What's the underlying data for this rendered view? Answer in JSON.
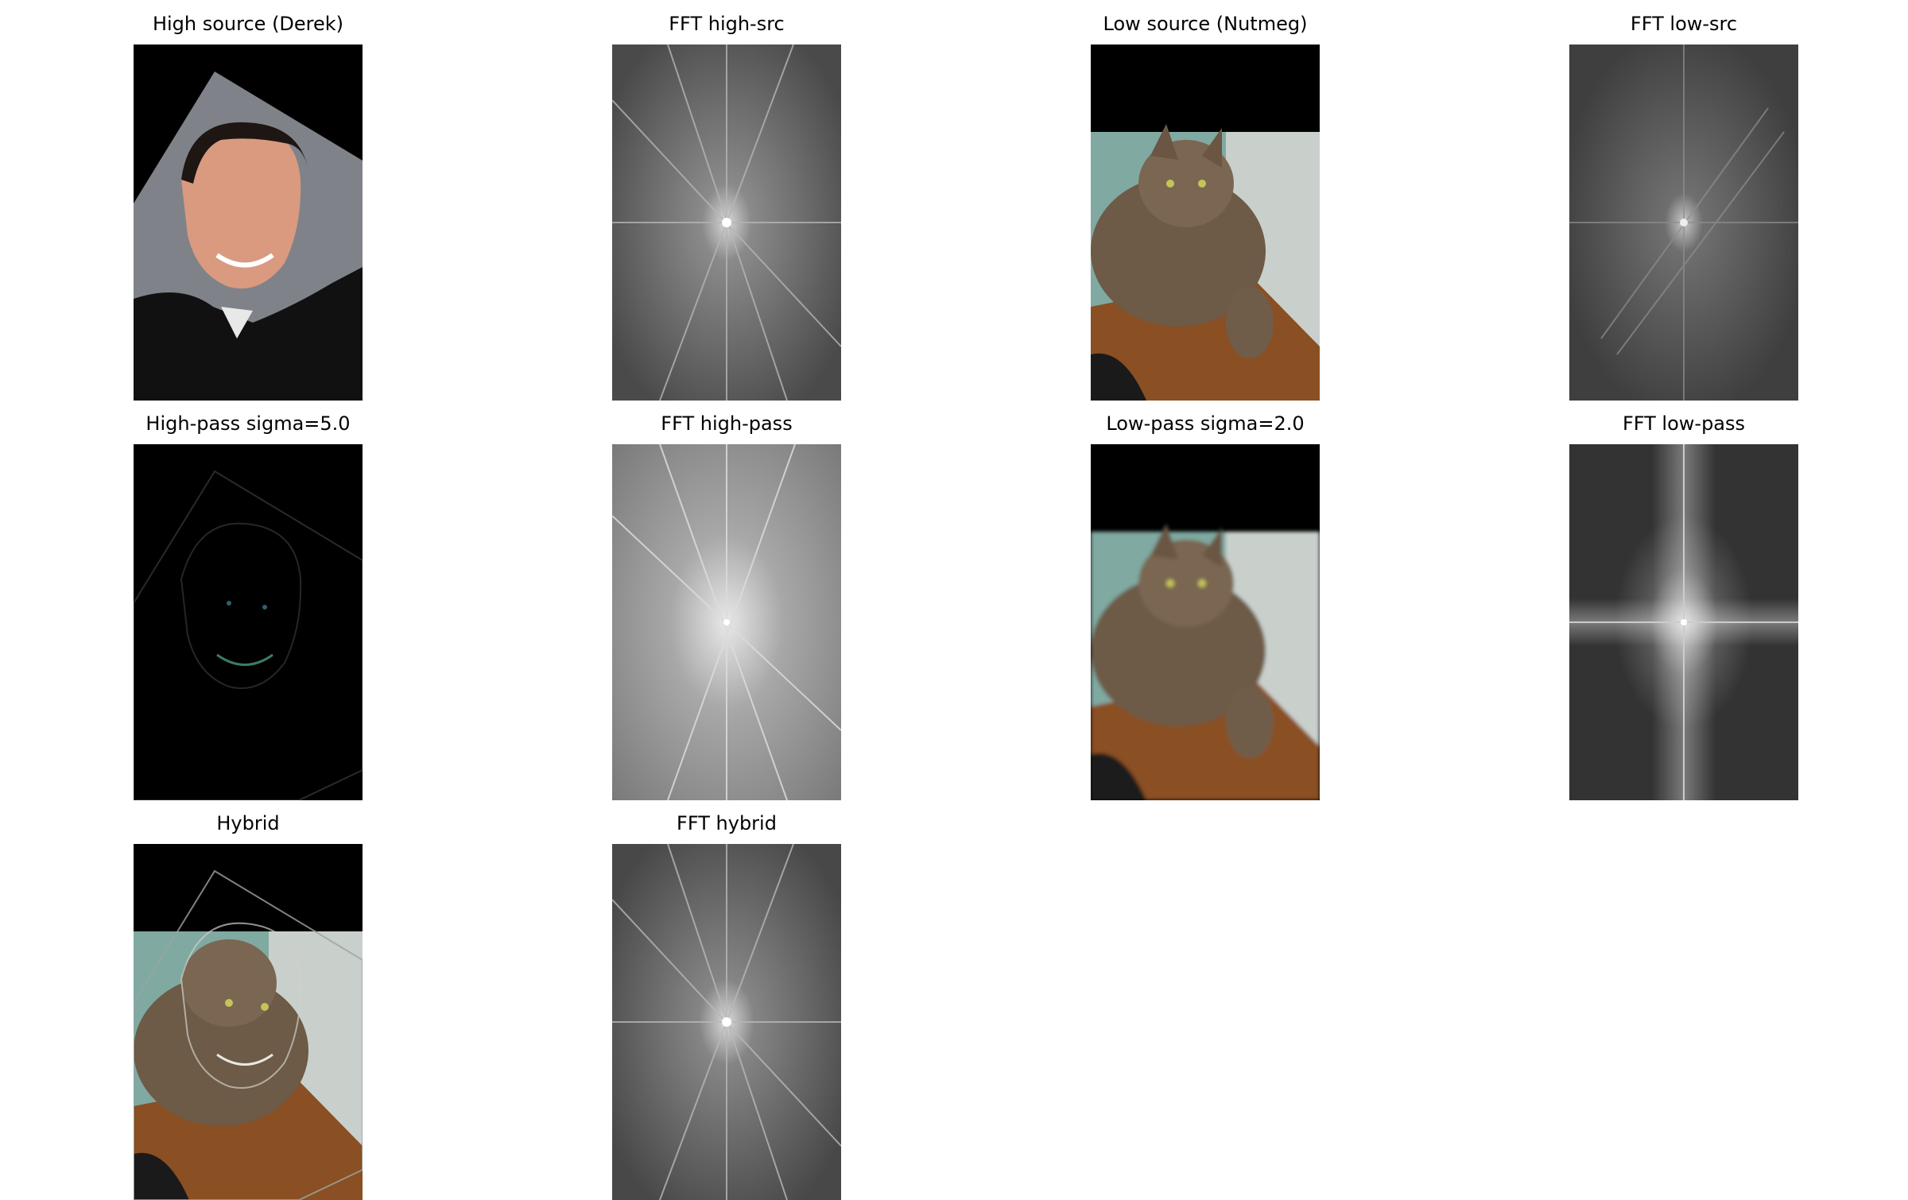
{
  "figure": {
    "panels": [
      {
        "title": "High source (Derek)",
        "image": "portrait-photo"
      },
      {
        "title": "FFT high-src",
        "image": "fft-spectrum"
      },
      {
        "title": "Low source (Nutmeg)",
        "image": "cat-photo"
      },
      {
        "title": "FFT low-src",
        "image": "fft-spectrum"
      },
      {
        "title": "High-pass sigma=5.0",
        "image": "edge-map"
      },
      {
        "title": "FFT high-pass",
        "image": "fft-spectrum"
      },
      {
        "title": "Low-pass sigma=2.0",
        "image": "blurred-cat-photo"
      },
      {
        "title": "FFT low-pass",
        "image": "fft-spectrum"
      },
      {
        "title": "Hybrid",
        "image": "hybrid-photo"
      },
      {
        "title": "FFT hybrid",
        "image": "fft-spectrum"
      }
    ]
  }
}
